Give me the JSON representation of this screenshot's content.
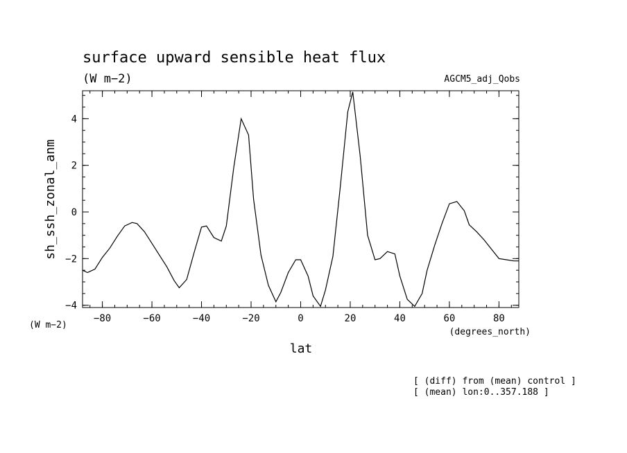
{
  "chart_data": {
    "type": "line",
    "title": "surface upward sensible heat flux",
    "subtitle_units": "(W m−2)",
    "experiment": "AGCM5_adj_Qobs",
    "ylabel": "sh_ssh_zonal_anm",
    "y_units": "(W m−2)",
    "xlabel": "lat",
    "x_units": "(degrees_north)",
    "notes": [
      "[ (diff) from (mean) control ]",
      "[ (mean) lon:0..357.188 ]"
    ],
    "xlim": [
      -88,
      88
    ],
    "ylim": [
      -4.1,
      5.2
    ],
    "x_ticks": [
      -80,
      -60,
      -40,
      -20,
      0,
      20,
      40,
      60,
      80
    ],
    "y_ticks": [
      -4,
      -2,
      0,
      2,
      4
    ],
    "series": [
      {
        "x": [
          -88,
          -86,
          -83,
          -80,
          -77,
          -74,
          -71,
          -68,
          -66,
          -63,
          -60,
          -57,
          -54,
          -51,
          -49,
          -46,
          -43,
          -40,
          -38,
          -35,
          -32,
          -30,
          -27,
          -24,
          -21,
          -19,
          -16,
          -13,
          -10,
          -8,
          -5,
          -2,
          0,
          3,
          5,
          8,
          10,
          13,
          16,
          19,
          21,
          24,
          27,
          30,
          32,
          35,
          38,
          40,
          43,
          46,
          49,
          51,
          54,
          57,
          60,
          63,
          66,
          68,
          71,
          74,
          77,
          80,
          83,
          86,
          88
        ],
        "y": [
          -2.5,
          -2.6,
          -2.45,
          -1.95,
          -1.55,
          -1.05,
          -0.6,
          -0.45,
          -0.5,
          -0.85,
          -1.35,
          -1.85,
          -2.35,
          -2.95,
          -3.25,
          -2.9,
          -1.75,
          -0.65,
          -0.6,
          -1.1,
          -1.25,
          -0.6,
          1.9,
          4.0,
          3.3,
          0.55,
          -1.85,
          -3.15,
          -3.85,
          -3.45,
          -2.6,
          -2.05,
          -2.05,
          -2.75,
          -3.6,
          -4.05,
          -3.35,
          -1.9,
          1.1,
          4.3,
          5.15,
          2.4,
          -1.0,
          -2.05,
          -2.0,
          -1.7,
          -1.8,
          -2.75,
          -3.75,
          -4.05,
          -3.5,
          -2.5,
          -1.45,
          -0.5,
          0.35,
          0.45,
          0.05,
          -0.55,
          -0.85,
          -1.2,
          -1.6,
          -2.0,
          -2.05,
          -2.1,
          -2.1
        ]
      }
    ]
  }
}
